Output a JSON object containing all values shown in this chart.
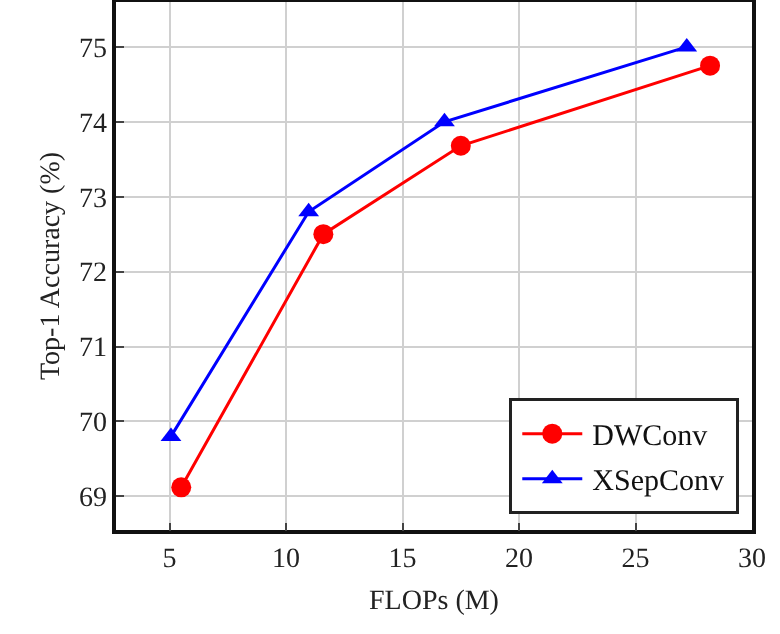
{
  "chart_data": {
    "type": "line",
    "xlabel": "FLOPs (M)",
    "ylabel": "Top-1 Accuracy (%)",
    "series": [
      {
        "name": "DWConv",
        "color": "#ff0000",
        "marker": "circle",
        "x": [
          5.5,
          11.6,
          17.5,
          28.2
        ],
        "values": [
          69.12,
          72.5,
          73.68,
          74.75
        ]
      },
      {
        "name": "XSepConv",
        "color": "#0000ff",
        "marker": "triangle",
        "x": [
          5.06,
          10.97,
          16.8,
          27.2
        ],
        "values": [
          69.8,
          72.8,
          74.0,
          75.0
        ]
      }
    ],
    "xlim": [
      2.7,
      30
    ],
    "xticks": [
      5,
      10,
      15,
      20,
      25,
      30
    ],
    "ylim": [
      68.55,
      75.6
    ],
    "yticks": [
      69,
      70,
      71,
      72,
      73,
      74,
      75
    ],
    "grid": true,
    "legend": "bottom right",
    "line_style": "solid"
  }
}
